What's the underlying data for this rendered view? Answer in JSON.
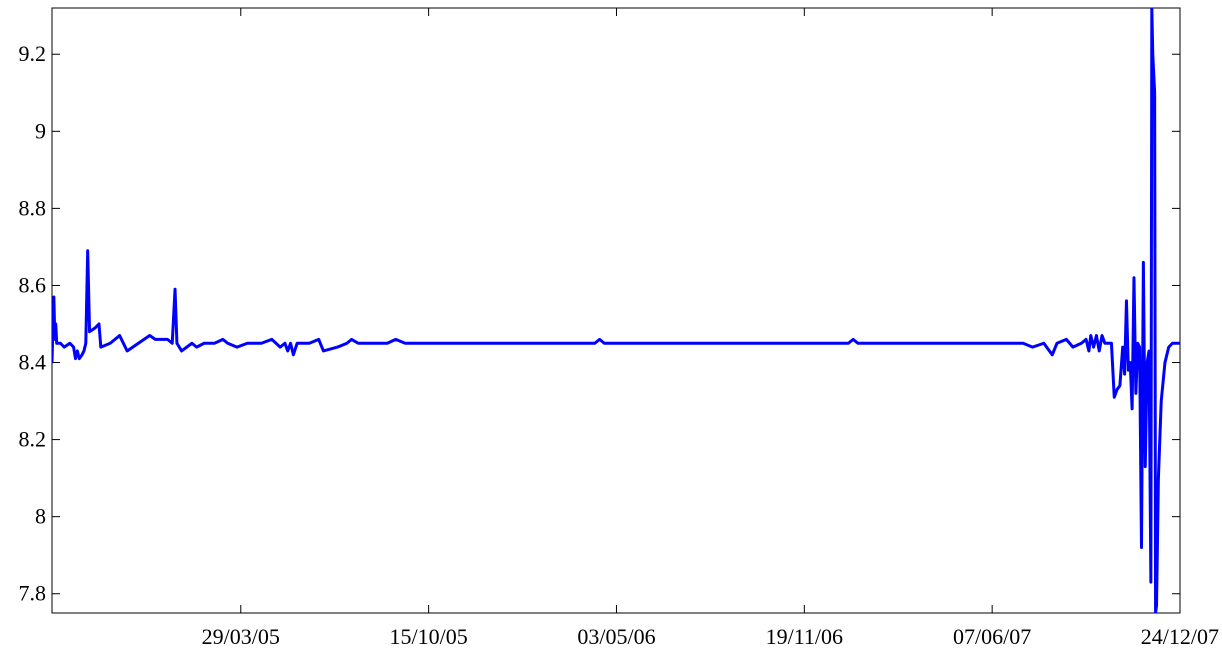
{
  "chart_data": {
    "type": "line",
    "title": "",
    "xlabel": "",
    "ylabel": "",
    "x_axis_type": "date",
    "xlim": [
      "2004-09-09",
      "2007-12-24"
    ],
    "ylim": [
      7.75,
      9.32
    ],
    "grid": false,
    "legend": "none",
    "y_ticks": [
      {
        "value": 7.8,
        "label": "7.8"
      },
      {
        "value": 8.0,
        "label": "8"
      },
      {
        "value": 8.2,
        "label": "8.2"
      },
      {
        "value": 8.4,
        "label": "8.4"
      },
      {
        "value": 8.6,
        "label": "8.6"
      },
      {
        "value": 8.8,
        "label": "8.8"
      },
      {
        "value": 9.0,
        "label": "9"
      },
      {
        "value": 9.2,
        "label": "9.2"
      }
    ],
    "x_ticks": [
      {
        "value": "2005-03-29",
        "label": "29/03/05"
      },
      {
        "value": "2005-10-15",
        "label": "15/10/05"
      },
      {
        "value": "2006-05-03",
        "label": "03/05/06"
      },
      {
        "value": "2006-11-19",
        "label": "19/11/06"
      },
      {
        "value": "2007-06-07",
        "label": "07/06/07"
      },
      {
        "value": "2007-12-24",
        "label": "24/12/07"
      }
    ],
    "series": [
      {
        "color": "#0000ff",
        "points": [
          [
            "2004-09-09",
            8.4
          ],
          [
            "2004-09-10",
            8.5
          ],
          [
            "2004-09-11",
            8.57
          ],
          [
            "2004-09-12",
            8.46
          ],
          [
            "2004-09-13",
            8.5
          ],
          [
            "2004-09-14",
            8.45
          ],
          [
            "2004-09-18",
            8.45
          ],
          [
            "2004-09-22",
            8.44
          ],
          [
            "2004-09-28",
            8.45
          ],
          [
            "2004-10-02",
            8.44
          ],
          [
            "2004-10-04",
            8.41
          ],
          [
            "2004-10-06",
            8.43
          ],
          [
            "2004-10-08",
            8.41
          ],
          [
            "2004-10-11",
            8.42
          ],
          [
            "2004-10-13",
            8.43
          ],
          [
            "2004-10-15",
            8.45
          ],
          [
            "2004-10-17",
            8.69
          ],
          [
            "2004-10-19",
            8.48
          ],
          [
            "2004-10-25",
            8.49
          ],
          [
            "2004-10-29",
            8.5
          ],
          [
            "2004-10-31",
            8.44
          ],
          [
            "2004-11-10",
            8.45
          ],
          [
            "2004-11-20",
            8.47
          ],
          [
            "2004-11-28",
            8.43
          ],
          [
            "2004-12-10",
            8.45
          ],
          [
            "2004-12-22",
            8.47
          ],
          [
            "2004-12-28",
            8.46
          ],
          [
            "2005-01-10",
            8.46
          ],
          [
            "2005-01-15",
            8.45
          ],
          [
            "2005-01-18",
            8.59
          ],
          [
            "2005-01-20",
            8.45
          ],
          [
            "2005-01-25",
            8.43
          ],
          [
            "2005-02-05",
            8.45
          ],
          [
            "2005-02-10",
            8.44
          ],
          [
            "2005-02-18",
            8.45
          ],
          [
            "2005-03-01",
            8.45
          ],
          [
            "2005-03-10",
            8.46
          ],
          [
            "2005-03-15",
            8.45
          ],
          [
            "2005-03-25",
            8.44
          ],
          [
            "2005-04-05",
            8.45
          ],
          [
            "2005-04-20",
            8.45
          ],
          [
            "2005-05-01",
            8.46
          ],
          [
            "2005-05-10",
            8.44
          ],
          [
            "2005-05-15",
            8.45
          ],
          [
            "2005-05-18",
            8.43
          ],
          [
            "2005-05-21",
            8.45
          ],
          [
            "2005-05-24",
            8.42
          ],
          [
            "2005-05-28",
            8.45
          ],
          [
            "2005-06-10",
            8.45
          ],
          [
            "2005-06-20",
            8.46
          ],
          [
            "2005-06-25",
            8.43
          ],
          [
            "2005-07-10",
            8.44
          ],
          [
            "2005-07-20",
            8.45
          ],
          [
            "2005-07-25",
            8.46
          ],
          [
            "2005-08-01",
            8.45
          ],
          [
            "2005-09-01",
            8.45
          ],
          [
            "2005-09-10",
            8.46
          ],
          [
            "2005-09-20",
            8.45
          ],
          [
            "2005-10-15",
            8.45
          ],
          [
            "2005-12-01",
            8.45
          ],
          [
            "2006-02-01",
            8.45
          ],
          [
            "2006-04-10",
            8.45
          ],
          [
            "2006-04-15",
            8.46
          ],
          [
            "2006-04-20",
            8.45
          ],
          [
            "2006-05-03",
            8.45
          ],
          [
            "2006-08-01",
            8.45
          ],
          [
            "2006-10-01",
            8.45
          ],
          [
            "2006-11-19",
            8.45
          ],
          [
            "2007-01-05",
            8.45
          ],
          [
            "2007-01-10",
            8.46
          ],
          [
            "2007-01-15",
            8.45
          ],
          [
            "2007-04-01",
            8.45
          ],
          [
            "2007-06-07",
            8.45
          ],
          [
            "2007-07-10",
            8.45
          ],
          [
            "2007-07-20",
            8.44
          ],
          [
            "2007-08-01",
            8.45
          ],
          [
            "2007-08-10",
            8.42
          ],
          [
            "2007-08-15",
            8.45
          ],
          [
            "2007-08-25",
            8.46
          ],
          [
            "2007-09-01",
            8.44
          ],
          [
            "2007-09-10",
            8.45
          ],
          [
            "2007-09-15",
            8.46
          ],
          [
            "2007-09-18",
            8.43
          ],
          [
            "2007-09-20",
            8.47
          ],
          [
            "2007-09-23",
            8.44
          ],
          [
            "2007-09-26",
            8.47
          ],
          [
            "2007-09-29",
            8.43
          ],
          [
            "2007-10-02",
            8.47
          ],
          [
            "2007-10-05",
            8.45
          ],
          [
            "2007-10-08",
            8.45
          ],
          [
            "2007-10-12",
            8.45
          ],
          [
            "2007-10-15",
            8.31
          ],
          [
            "2007-10-18",
            8.33
          ],
          [
            "2007-10-21",
            8.34
          ],
          [
            "2007-10-24",
            8.44
          ],
          [
            "2007-10-26",
            8.37
          ],
          [
            "2007-10-28",
            8.56
          ],
          [
            "2007-10-30",
            8.38
          ],
          [
            "2007-11-01",
            8.4
          ],
          [
            "2007-11-03",
            8.28
          ],
          [
            "2007-11-05",
            8.62
          ],
          [
            "2007-11-07",
            8.32
          ],
          [
            "2007-11-09",
            8.45
          ],
          [
            "2007-11-11",
            8.44
          ],
          [
            "2007-11-13",
            7.92
          ],
          [
            "2007-11-15",
            8.66
          ],
          [
            "2007-11-17",
            8.13
          ],
          [
            "2007-11-19",
            8.4
          ],
          [
            "2007-11-21",
            8.43
          ],
          [
            "2007-11-23",
            7.83
          ],
          [
            "2007-11-24",
            9.32
          ],
          [
            "2007-11-25",
            9.2
          ],
          [
            "2007-11-27",
            9.1
          ],
          [
            "2007-11-28",
            7.75
          ],
          [
            "2007-11-29",
            7.77
          ],
          [
            "2007-12-01",
            8.1
          ],
          [
            "2007-12-04",
            8.3
          ],
          [
            "2007-12-08",
            8.4
          ],
          [
            "2007-12-12",
            8.44
          ],
          [
            "2007-12-16",
            8.45
          ],
          [
            "2007-12-24",
            8.45
          ]
        ]
      }
    ]
  }
}
